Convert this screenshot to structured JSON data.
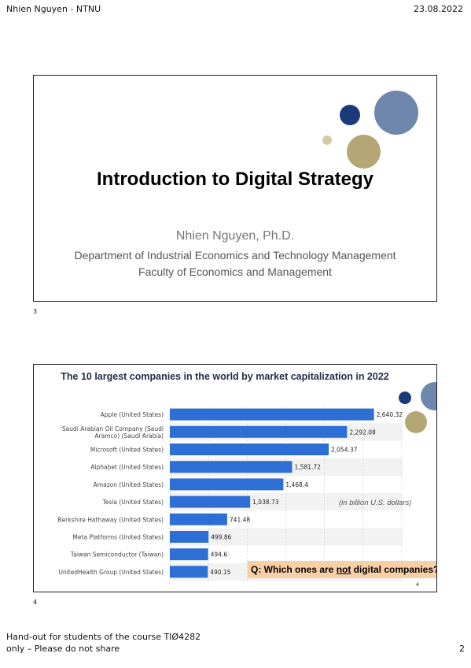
{
  "header": {
    "left": "Nhien Nguyen - NTNU",
    "right": "23.08.2022"
  },
  "slide1": {
    "number": "3",
    "title": "Introduction to Digital Strategy",
    "author": "Nhien Nguyen, Ph.D.",
    "line1": "Department of Industrial Economics and Technology Management",
    "line2": "Faculty of Economics and Management",
    "colors": {
      "navy": "#1b3a7a",
      "slate": "#6f87ad",
      "gold": "#b5a676",
      "beige": "#d8c9a8"
    }
  },
  "slide2": {
    "number": "4",
    "note": "(in billion U.S. dollars)",
    "question_pre": "Q: Which ones are ",
    "question_under": "not",
    "question_post": " digital companies?",
    "mini_number": "4"
  },
  "chart_data": {
    "type": "bar",
    "orientation": "horizontal",
    "title": "The 10 largest companies in the world by market capitalization in 2022",
    "categories": [
      "Apple (United States)",
      "Saudi Arabian Oil Company (Saudi Aramco) (Saudi Arabia)",
      "Microsoft (United States)",
      "Alphabet (United States)",
      "Amazon (United States)",
      "Tesla (United States)",
      "Berkshire Hathaway (United States)",
      "Meta Platforms (United States)",
      "Taiwan Semiconductor (Taiwan)",
      "UnitedHealth Group (United States)"
    ],
    "category_lines": [
      [
        "Apple (United States)"
      ],
      [
        "Saudi Arabian Oil Company (Saudi",
        "Aramco) (Saudi Arabia)"
      ],
      [
        "Microsoft (United States)"
      ],
      [
        "Alphabet (United States)"
      ],
      [
        "Amazon (United States)"
      ],
      [
        "Tesla (United States)"
      ],
      [
        "Berkshire Hathaway (United States)"
      ],
      [
        "Meta Platforms (United States)"
      ],
      [
        "Taiwan Semiconductor (Taiwan)"
      ],
      [
        "UnitedHealth Group (United States)"
      ]
    ],
    "values": [
      2640.32,
      2292.08,
      2054.37,
      1581.72,
      1468.4,
      1038.73,
      741.48,
      499.86,
      494.6,
      490.15
    ],
    "value_labels": [
      "2,640.32",
      "2,292.08",
      "2,054.37",
      "1,581.72",
      "1,468.4",
      "1,038.73",
      "741.48",
      "499.86",
      "494.6",
      "490.15"
    ],
    "xlim": [
      0,
      3000
    ],
    "grid": true,
    "bar_color": "#2e6fd6"
  },
  "footer": {
    "line1": "Hand-out for students of the course TIØ4282",
    "line2": "only – Please do not share",
    "page": "2"
  }
}
